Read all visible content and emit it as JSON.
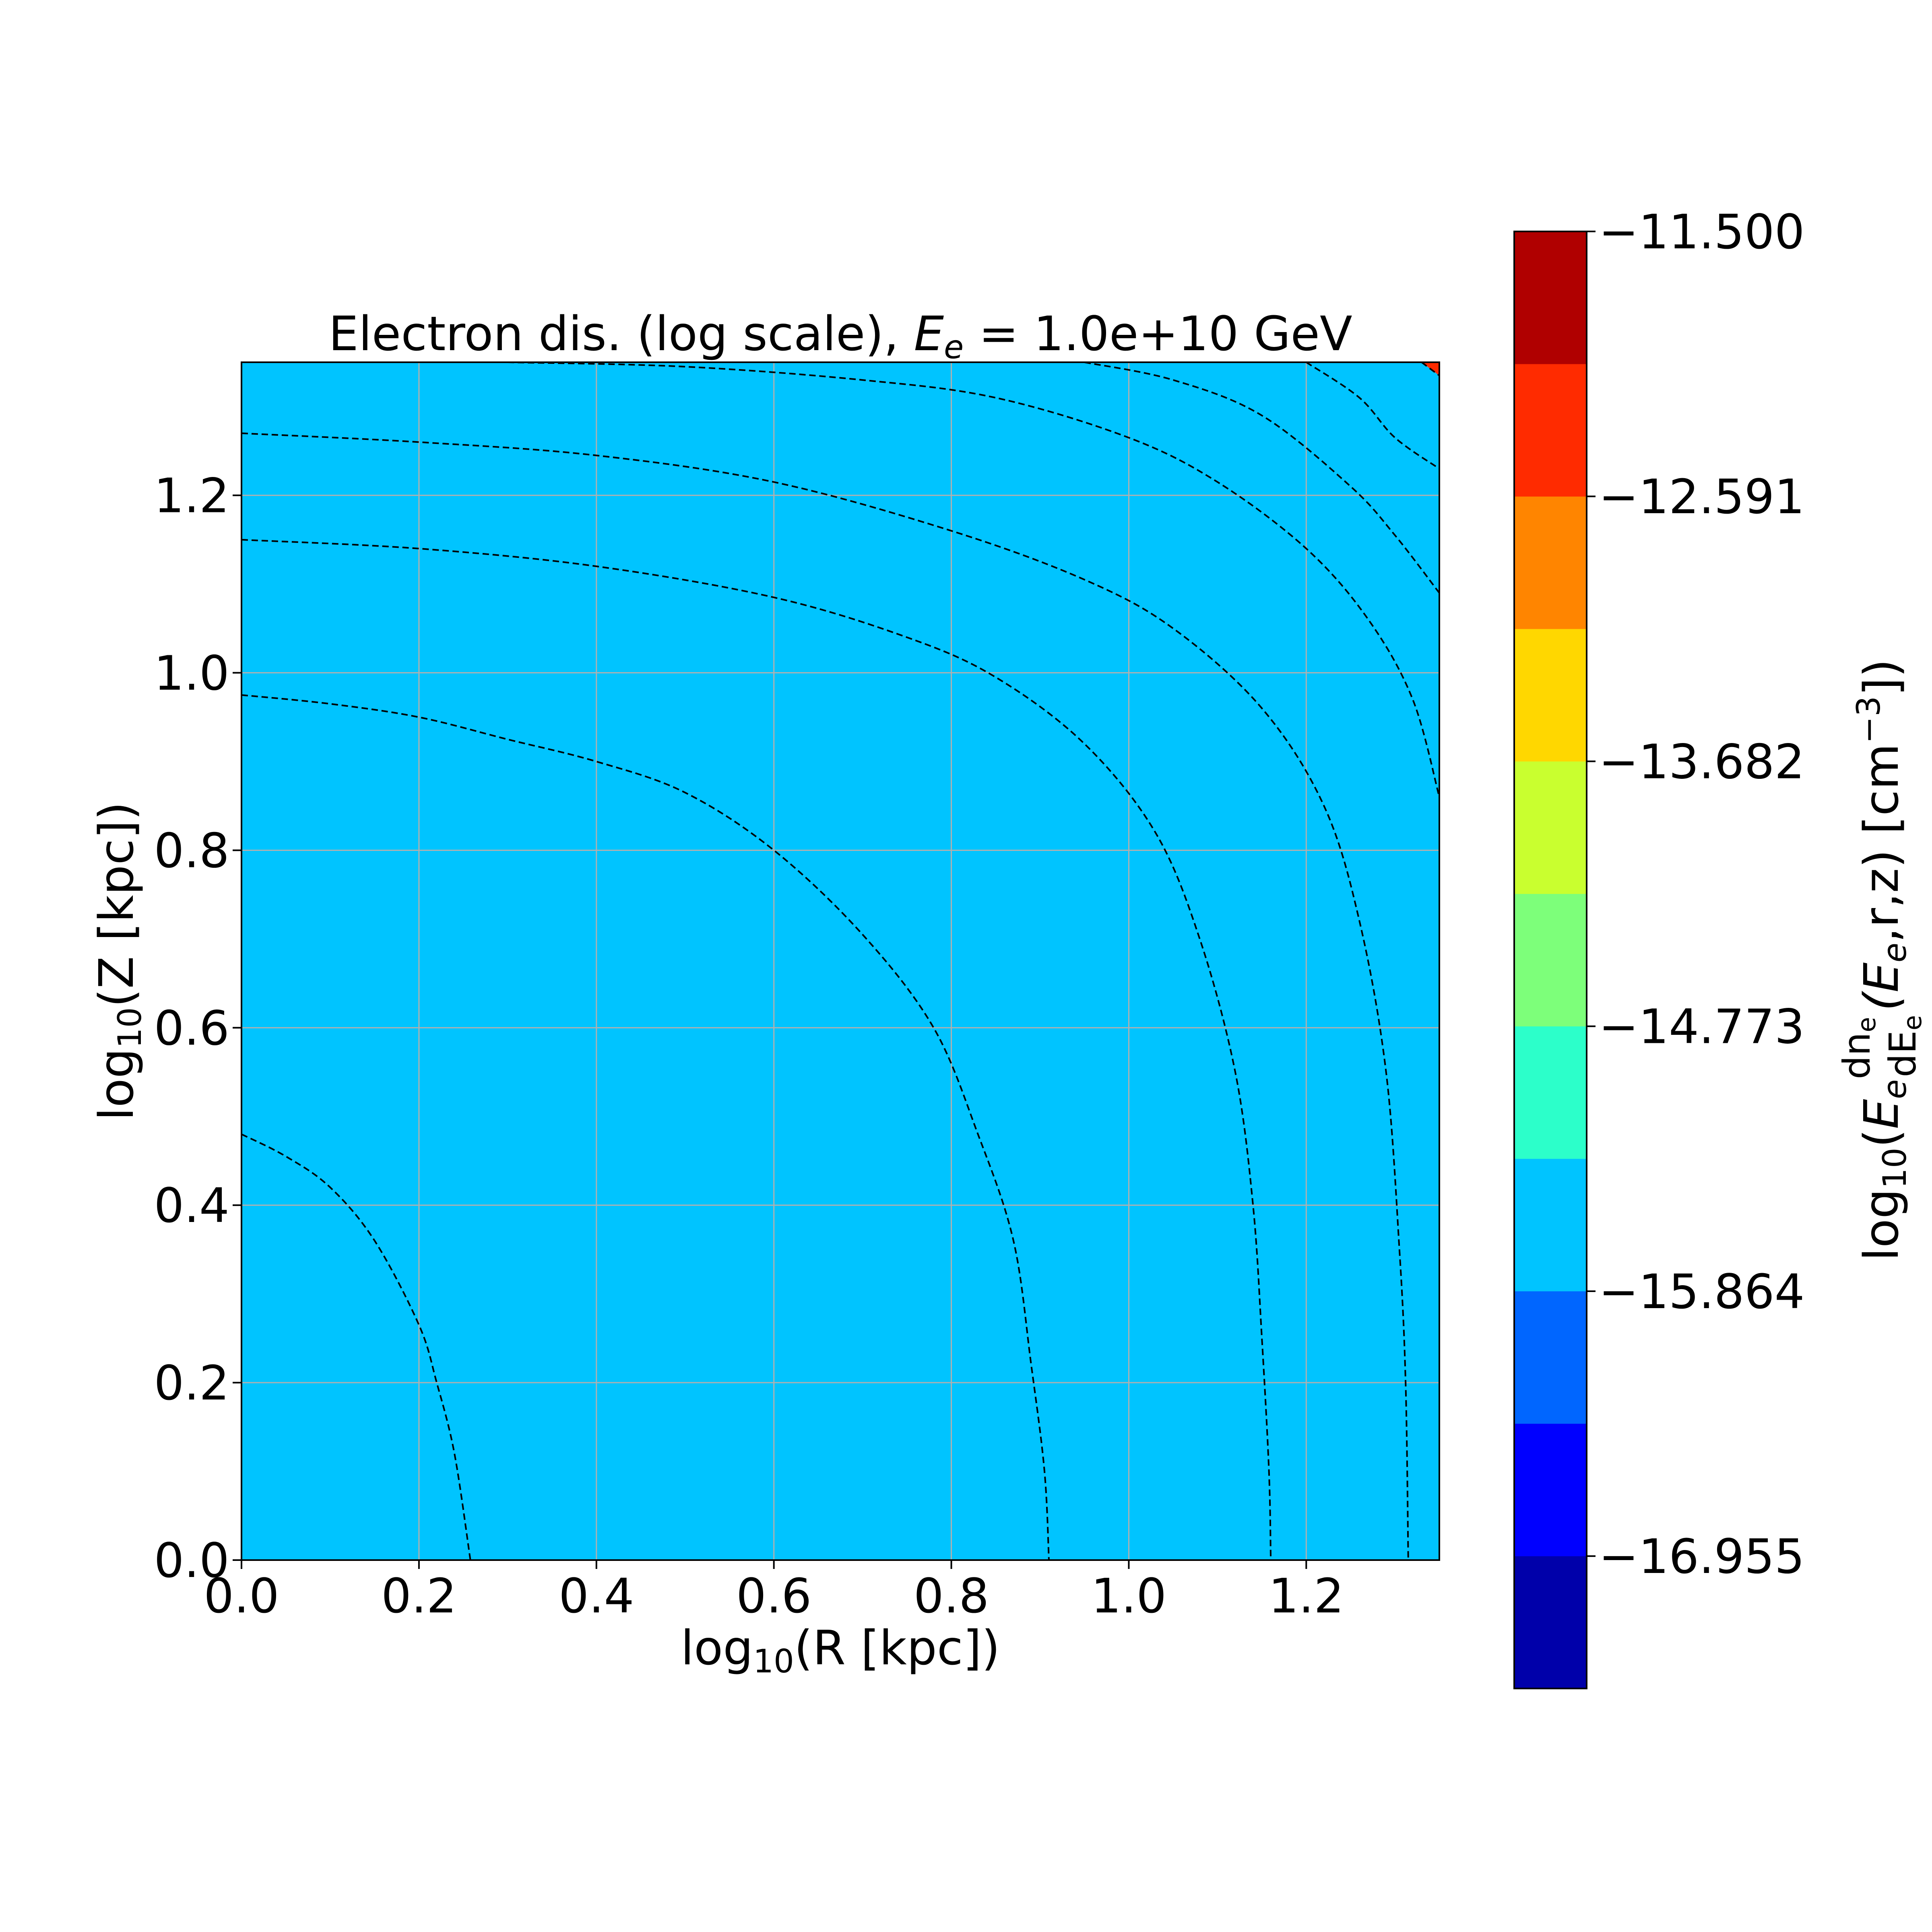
{
  "chart_data": {
    "type": "contour",
    "title": {
      "prefix": "Electron dis. (log scale), ",
      "sym": "E",
      "sub": "e",
      "suffix": " = 1.0e+10 GeV"
    },
    "xlabel": {
      "pre": "log",
      "sub": "10",
      "post": "(R [kpc])"
    },
    "ylabel": {
      "pre": "log",
      "sub": "10",
      "post": "(Z [kpc])"
    },
    "xlim": [
      0.0,
      1.35
    ],
    "ylim": [
      0.0,
      1.35
    ],
    "xticks": [
      0.0,
      0.2,
      0.4,
      0.6,
      0.8,
      1.0,
      1.2
    ],
    "yticks": [
      0.0,
      0.2,
      0.4,
      0.6,
      0.8,
      1.0,
      1.2
    ],
    "xtick_labels": [
      "0.0",
      "0.2",
      "0.4",
      "0.6",
      "0.8",
      "1.0",
      "1.2"
    ],
    "ytick_labels": [
      "0.0",
      "0.2",
      "0.4",
      "0.6",
      "0.8",
      "1.0",
      "1.2"
    ],
    "grid": true,
    "contour_line_style": "dashed",
    "contour_levels": [
      -17.5,
      -17.136,
      -16.773,
      -16.409,
      -16.045,
      -15.682,
      -15.318,
      -14.955,
      -14.591,
      -14.227,
      -13.864,
      -13.5
    ],
    "fill_colors": [
      "#0000aa",
      "#0000ff",
      "#0066ff",
      "#00c4ff",
      "#2cffca",
      "#7dff7a",
      "#c9ff2f",
      "#ffd700",
      "#ff8500",
      "#ff2b00",
      "#b00000"
    ],
    "contour_lines": [
      {
        "level": -13.864,
        "points": [
          [
            0,
            0.48
          ],
          [
            0.05,
            0.455
          ],
          [
            0.1,
            0.42
          ],
          [
            0.15,
            0.36
          ],
          [
            0.2,
            0.265
          ],
          [
            0.22,
            0.2
          ],
          [
            0.24,
            0.12
          ],
          [
            0.258,
            0
          ]
        ]
      },
      {
        "level": -14.227,
        "points": [
          [
            0,
            0.975
          ],
          [
            0.1,
            0.965
          ],
          [
            0.2,
            0.95
          ],
          [
            0.3,
            0.925
          ],
          [
            0.4,
            0.9
          ],
          [
            0.5,
            0.865
          ],
          [
            0.6,
            0.8
          ],
          [
            0.7,
            0.705
          ],
          [
            0.78,
            0.6
          ],
          [
            0.83,
            0.48
          ],
          [
            0.87,
            0.36
          ],
          [
            0.89,
            0.22
          ],
          [
            0.905,
            0.1
          ],
          [
            0.91,
            0
          ]
        ]
      },
      {
        "level": -14.591,
        "points": [
          [
            0,
            1.15
          ],
          [
            0.2,
            1.14
          ],
          [
            0.4,
            1.12
          ],
          [
            0.6,
            1.085
          ],
          [
            0.75,
            1.04
          ],
          [
            0.85,
            0.995
          ],
          [
            0.95,
            0.92
          ],
          [
            1.03,
            0.82
          ],
          [
            1.08,
            0.7
          ],
          [
            1.12,
            0.55
          ],
          [
            1.14,
            0.4
          ],
          [
            1.15,
            0.25
          ],
          [
            1.158,
            0.1
          ],
          [
            1.16,
            0
          ]
        ]
      },
      {
        "level": -14.955,
        "points": [
          [
            0,
            1.27
          ],
          [
            0.2,
            1.26
          ],
          [
            0.4,
            1.245
          ],
          [
            0.6,
            1.215
          ],
          [
            0.8,
            1.16
          ],
          [
            0.95,
            1.105
          ],
          [
            1.05,
            1.05
          ],
          [
            1.15,
            0.96
          ],
          [
            1.22,
            0.85
          ],
          [
            1.26,
            0.72
          ],
          [
            1.29,
            0.55
          ],
          [
            1.305,
            0.35
          ],
          [
            1.312,
            0.2
          ],
          [
            1.315,
            0
          ]
        ]
      },
      {
        "level": -15.318,
        "points": [
          [
            0.3,
            1.35
          ],
          [
            0.5,
            1.345
          ],
          [
            0.7,
            1.33
          ],
          [
            0.85,
            1.31
          ],
          [
            1.0,
            1.265
          ],
          [
            1.1,
            1.215
          ],
          [
            1.2,
            1.14
          ],
          [
            1.27,
            1.06
          ],
          [
            1.32,
            0.97
          ],
          [
            1.35,
            0.86
          ]
        ]
      },
      {
        "level": -15.682,
        "points": [
          [
            0.95,
            1.35
          ],
          [
            1.05,
            1.33
          ],
          [
            1.15,
            1.29
          ],
          [
            1.25,
            1.21
          ],
          [
            1.3,
            1.155
          ],
          [
            1.35,
            1.09
          ]
        ]
      },
      {
        "level": -16.045,
        "points": [
          [
            1.2,
            1.35
          ],
          [
            1.26,
            1.31
          ],
          [
            1.3,
            1.265
          ],
          [
            1.35,
            1.23
          ]
        ]
      },
      {
        "level": -16.409,
        "points": [
          [
            1.33,
            1.35
          ],
          [
            1.35,
            1.335
          ]
        ]
      }
    ],
    "colorbar": {
      "range": [
        -17.5,
        -11.5
      ],
      "colors": [
        "#0000aa",
        "#0000ff",
        "#0066ff",
        "#00c4ff",
        "#2cffca",
        "#7dff7a",
        "#c9ff2f",
        "#ffd700",
        "#ff8500",
        "#ff2b00",
        "#b00000"
      ],
      "ticks": [
        -16.955,
        -15.864,
        -14.773,
        -13.682,
        -12.591,
        -11.5
      ],
      "tick_labels": [
        "−16.955",
        "−15.864",
        "−14.773",
        "−13.682",
        "−12.591",
        "−11.500"
      ],
      "label": {
        "pre": "log",
        "sub": "10",
        "open": "(",
        "E": "E",
        "e_sub": "e",
        "frac_num": "dn",
        "frac_num_sub": "e",
        "frac_den": "dE",
        "frac_den_sub": "e",
        "arg": "(E",
        "arg_sub": "e",
        "arg_rest": ",r,z) [cm",
        "sup": "−3",
        "close": "])"
      }
    }
  }
}
